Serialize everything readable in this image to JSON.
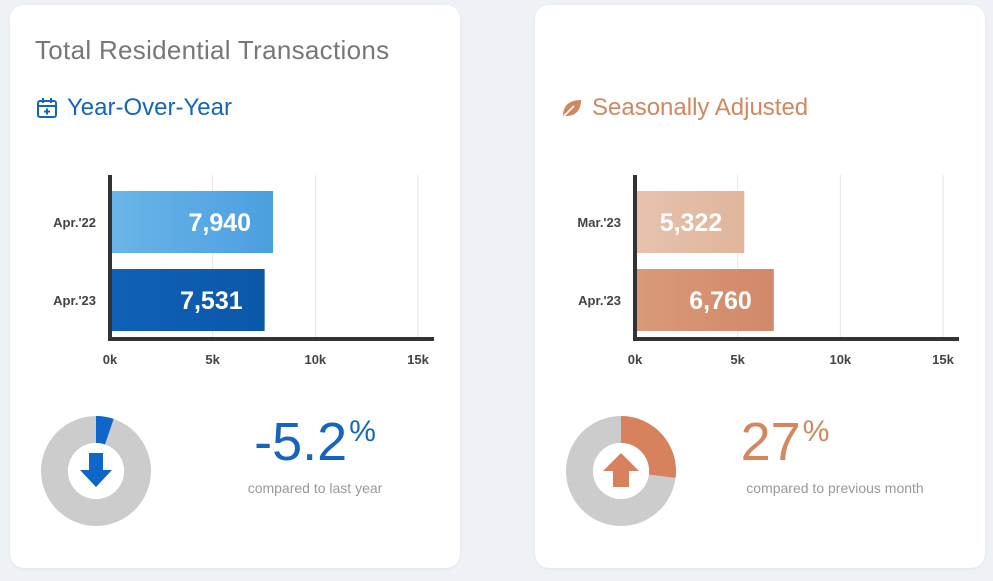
{
  "colors": {
    "blue_dark": "#1565c0",
    "blue_mid": "#0d5fb3",
    "blue_light": "#5aa9e6",
    "orange_title": "#d2875f",
    "orange_dark": "#d4896a",
    "orange_light": "#e6bfa8",
    "gray_donut": "#cccccc",
    "axis": "#333333"
  },
  "left_card": {
    "title": "Total Residential Transactions",
    "section_title": "Year-Over-Year",
    "icon": "calendar-plus-icon",
    "kpi": {
      "value": "-5.2",
      "unit": "%",
      "subtitle": "compared to last year",
      "direction": "down",
      "fraction": 0.052
    }
  },
  "right_card": {
    "section_title": "Seasonally Adjusted",
    "icon": "leaf-icon",
    "kpi": {
      "value": "27",
      "unit": "%",
      "subtitle": "compared to previous month",
      "direction": "up",
      "fraction": 0.27
    }
  },
  "chart_data": [
    {
      "type": "bar",
      "orientation": "horizontal",
      "categories": [
        "Apr.'22",
        "Apr.'23"
      ],
      "values": [
        7940,
        7531
      ],
      "value_labels": [
        "7,940",
        "7,531"
      ],
      "xlim": [
        0,
        15000
      ],
      "ticks": [
        0,
        5000,
        10000,
        15000
      ],
      "tick_labels": [
        "0k",
        "5k",
        "10k",
        "15k"
      ],
      "grid": true
    },
    {
      "type": "bar",
      "orientation": "horizontal",
      "categories": [
        "Mar.'23",
        "Apr.'23"
      ],
      "values": [
        5322,
        6760
      ],
      "value_labels": [
        "5,322",
        "6,760"
      ],
      "xlim": [
        0,
        15000
      ],
      "ticks": [
        0,
        5000,
        10000,
        15000
      ],
      "tick_labels": [
        "0k",
        "5k",
        "10k",
        "15k"
      ],
      "grid": true
    }
  ]
}
